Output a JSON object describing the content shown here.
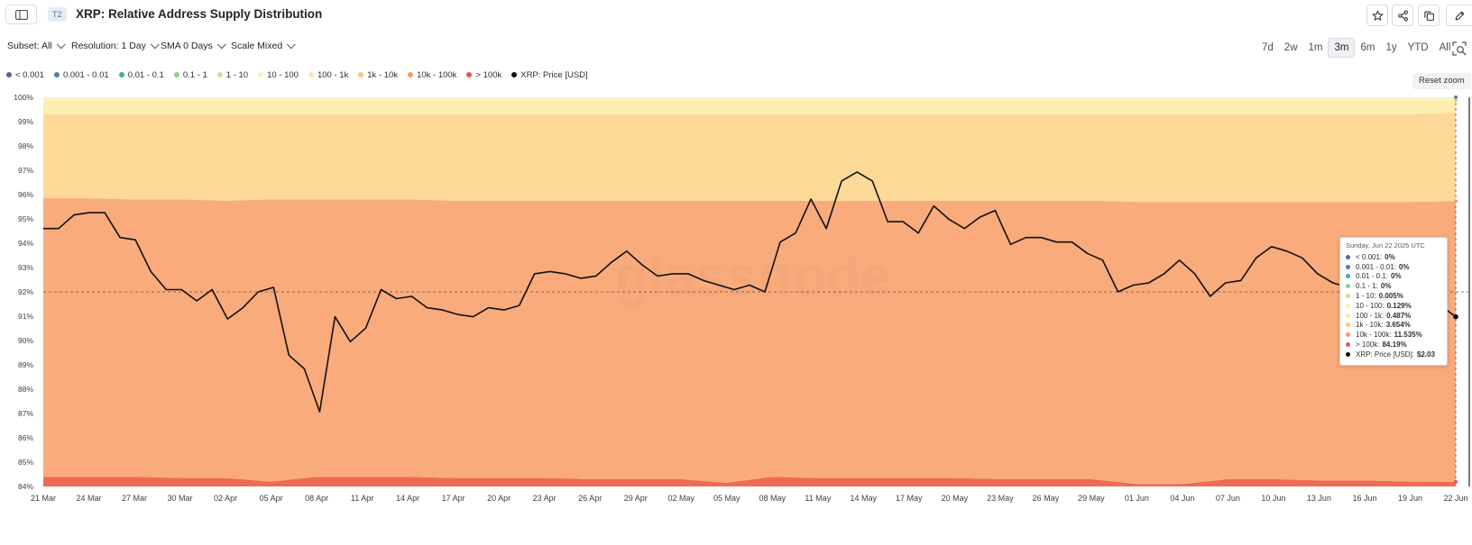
{
  "header": {
    "tier_badge": "T2",
    "title": "XRP: Relative Address Supply Distribution",
    "sidebar_icon": "sidebar-panel-icon",
    "actions": [
      {
        "name": "favorite-button",
        "icon": "star-icon"
      },
      {
        "name": "share-button",
        "icon": "share-icon"
      },
      {
        "name": "copy-button",
        "icon": "copy-icon"
      },
      {
        "name": "edit-button",
        "icon": "pencil-icon"
      }
    ]
  },
  "controls": {
    "subset": "Subset: All",
    "resolution": "Resolution: 1 Day",
    "sma": "SMA 0 Days",
    "scale": "Scale Mixed",
    "ranges": [
      "7d",
      "2w",
      "1m",
      "3m",
      "6m",
      "1y",
      "YTD",
      "All"
    ],
    "active_range": "3m",
    "zoom_icon": "zoom-select-icon",
    "reset_zoom": "Reset zoom"
  },
  "watermark": "glassnode",
  "legend": [
    {
      "label": "< 0.001",
      "color": "#5b5ea6"
    },
    {
      "label": "0.001 - 0.01",
      "color": "#4a7bb7"
    },
    {
      "label": "0.01 - 0.1",
      "color": "#3fae9a"
    },
    {
      "label": "0.1 - 1",
      "color": "#8ccf8b"
    },
    {
      "label": "1 - 10",
      "color": "#c6e58e"
    },
    {
      "label": "10 - 100",
      "color": "#f6f3a8"
    },
    {
      "label": "100 - 1k",
      "color": "#fde8a0"
    },
    {
      "label": "1k - 10k",
      "color": "#fbc77a"
    },
    {
      "label": "10k - 100k",
      "color": "#f79a66"
    },
    {
      "label": "> 100k",
      "color": "#e6574a"
    },
    {
      "label": "XRP: Price [USD]",
      "color": "#111111"
    }
  ],
  "tooltip": {
    "date": "Sunday, Jun 22 2025 UTC",
    "rows": [
      {
        "label": "< 0.001",
        "value": "0%",
        "color": "#5b5ea6"
      },
      {
        "label": "0.001 - 0.01",
        "value": "0%",
        "color": "#4a7bb7"
      },
      {
        "label": "0.01 - 0.1",
        "value": "0%",
        "color": "#3fae9a"
      },
      {
        "label": "0.1 - 1",
        "value": "0%",
        "color": "#8ccf8b"
      },
      {
        "label": "1 - 10",
        "value": "0.005%",
        "color": "#c6e58e"
      },
      {
        "label": "10 - 100",
        "value": "0.129%",
        "color": "#f6f3a8"
      },
      {
        "label": "100 - 1k",
        "value": "0.487%",
        "color": "#fde8a0"
      },
      {
        "label": "1k - 10k",
        "value": "3.654%",
        "color": "#fbc77a"
      },
      {
        "label": "10k - 100k",
        "value": "11.535%",
        "color": "#f79a66"
      },
      {
        "label": "> 100k",
        "value": "84.19%",
        "color": "#e6574a"
      },
      {
        "label": "XRP: Price [USD]",
        "value": "$2.03",
        "color": "#111111"
      }
    ]
  },
  "chart_data": {
    "type": "area",
    "title": "XRP: Relative Address Supply Distribution",
    "xlabel": "",
    "ylabel": "",
    "ylim": [
      84,
      100
    ],
    "y_ticks": [
      "100%",
      "99%",
      "98%",
      "97%",
      "96%",
      "95%",
      "94%",
      "93%",
      "92%",
      "91%",
      "90%",
      "89%",
      "88%",
      "87%",
      "86%",
      "85%",
      "84%"
    ],
    "x_ticks": [
      "21 Mar",
      "24 Mar",
      "27 Mar",
      "30 Mar",
      "02 Apr",
      "05 Apr",
      "08 Apr",
      "11 Apr",
      "14 Apr",
      "17 Apr",
      "20 Apr",
      "23 Apr",
      "26 Apr",
      "29 Apr",
      "02 May",
      "05 May",
      "08 May",
      "11 May",
      "14 May",
      "17 May",
      "20 May",
      "23 May",
      "26 May",
      "29 May",
      "01 Jun",
      "04 Jun",
      "07 Jun",
      "10 Jun",
      "13 Jun",
      "16 Jun",
      "19 Jun",
      "22 Jun"
    ],
    "stacked_boundaries_percent": {
      "gt_100k_top": [
        84.4,
        84.4,
        84.4,
        84.35,
        84.35,
        84.2,
        84.4,
        84.4,
        84.4,
        84.35,
        84.35,
        84.35,
        84.3,
        84.3,
        84.3,
        84.15,
        84.4,
        84.35,
        84.35,
        84.35,
        84.35,
        84.3,
        84.3,
        84.3,
        84.1,
        84.1,
        84.3,
        84.3,
        84.25,
        84.25,
        84.2,
        84.19
      ],
      "10k_100k_top": [
        95.85,
        95.85,
        95.8,
        95.8,
        95.75,
        95.8,
        95.8,
        95.8,
        95.8,
        95.75,
        95.75,
        95.75,
        95.75,
        95.75,
        95.75,
        95.75,
        95.75,
        95.75,
        95.75,
        95.75,
        95.75,
        95.75,
        95.75,
        95.75,
        95.7,
        95.7,
        95.7,
        95.7,
        95.7,
        95.7,
        95.7,
        95.725
      ],
      "1k_10k_top": [
        99.3,
        99.3,
        99.3,
        99.3,
        99.3,
        99.3,
        99.3,
        99.3,
        99.3,
        99.3,
        99.3,
        99.3,
        99.3,
        99.3,
        99.3,
        99.3,
        99.3,
        99.3,
        99.3,
        99.3,
        99.3,
        99.3,
        99.3,
        99.3,
        99.3,
        99.3,
        99.3,
        99.3,
        99.3,
        99.3,
        99.3,
        99.379
      ],
      "100_1k_top": [
        99.85,
        99.85,
        99.85,
        99.85,
        99.85,
        99.85,
        99.85,
        99.85,
        99.85,
        99.85,
        99.85,
        99.85,
        99.85,
        99.85,
        99.85,
        99.85,
        99.85,
        99.85,
        99.85,
        99.85,
        99.85,
        99.85,
        99.85,
        99.85,
        99.85,
        99.85,
        99.85,
        99.85,
        99.85,
        99.85,
        99.85,
        99.866
      ]
    },
    "series": [
      {
        "name": "XRP: Price [USD]",
        "values": [
          2.42,
          2.42,
          2.48,
          2.49,
          2.49,
          2.38,
          2.37,
          2.23,
          2.15,
          2.15,
          2.1,
          2.15,
          2.02,
          2.07,
          2.14,
          2.16,
          1.86,
          1.8,
          1.61,
          2.03,
          1.92,
          1.98,
          2.15,
          2.11,
          2.12,
          2.07,
          2.06,
          2.04,
          2.03,
          2.07,
          2.06,
          2.08,
          2.22,
          2.23,
          2.22,
          2.2,
          2.21,
          2.27,
          2.32,
          2.26,
          2.21,
          2.22,
          2.22,
          2.19,
          2.17,
          2.15,
          2.17,
          2.14,
          2.36,
          2.4,
          2.55,
          2.42,
          2.63,
          2.67,
          2.63,
          2.45,
          2.45,
          2.4,
          2.52,
          2.46,
          2.42,
          2.47,
          2.5,
          2.35,
          2.38,
          2.38,
          2.36,
          2.36,
          2.31,
          2.28,
          2.14,
          2.17,
          2.18,
          2.22,
          2.28,
          2.22,
          2.12,
          2.18,
          2.19,
          2.29,
          2.34,
          2.32,
          2.29,
          2.22,
          2.18,
          2.16,
          2.18,
          2.26,
          2.19,
          2.18,
          2.16,
          2.08,
          2.03
        ]
      }
    ],
    "crosshair_percent": 92,
    "grid": false,
    "legend_position": "top-left"
  }
}
